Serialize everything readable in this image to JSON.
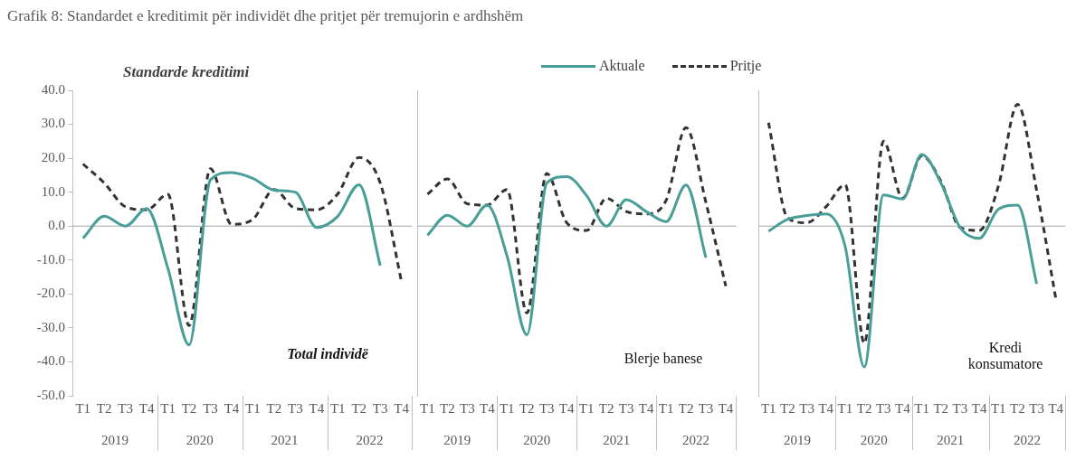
{
  "chart_data": [
    {
      "type": "line",
      "title": "Grafik 8: Standardet e kreditimit për individët dhe pritjet për tremujorin e ardhshëm",
      "subtitle": "Standarde kreditimi",
      "categories": [
        "T1",
        "T2",
        "T3",
        "T4",
        "T1",
        "T2",
        "T3",
        "T4",
        "T1",
        "T2",
        "T3",
        "T4",
        "T1",
        "T2",
        "T3",
        "T4"
      ],
      "series": [
        {
          "color": "#4a9e98",
          "line_style": "solid",
          "values": [
            -3.6,
            2.9,
            0,
            5.2,
            -12.5,
            -35,
            13.6,
            15.8,
            14.1,
            10.6,
            10,
            -0.4,
            2.9,
            12.2,
            -11.6,
            null
          ]
        },
        {
          "color": "#333333",
          "line_style": "dashed",
          "values": [
            18.3,
            12.7,
            5.7,
            4.8,
            9.4,
            -29.3,
            16.9,
            0.5,
            2,
            10.8,
            5.2,
            4.8,
            9.5,
            20.2,
            12.7,
            -16.3
          ]
        }
      ],
      "ylim": [
        -50,
        40
      ],
      "yticks": [
        {
          "value": -50,
          "label": "-50.0"
        },
        {
          "value": -40,
          "label": "-40.0"
        },
        {
          "value": -30,
          "label": "-30.0"
        },
        {
          "value": -20,
          "label": "-20.0"
        },
        {
          "value": -10,
          "label": "-10.0"
        },
        {
          "value": 0,
          "label": "0.0"
        },
        {
          "value": 10,
          "label": "10.0"
        },
        {
          "value": 20,
          "label": "20.0"
        },
        {
          "value": 30,
          "label": "30.0"
        },
        {
          "value": 40,
          "label": "40.0"
        }
      ],
      "ref_lines": [
        {
          "axis": "y",
          "value": 0,
          "color": "#a6a6a6"
        }
      ],
      "annotations": [
        "Total individë",
        "2019",
        "2020",
        "2021",
        "2022"
      ],
      "marker": "none",
      "grid": false,
      "legend": false
    },
    {
      "type": "line",
      "categories": [
        "T1",
        "T2",
        "T3",
        "T4",
        "T1",
        "T2",
        "T3",
        "T4",
        "T1",
        "T2",
        "T3",
        "T4",
        "T1",
        "T2",
        "T3",
        "T4"
      ],
      "series": [
        {
          "name": "Aktuale",
          "color": "#4a9e98",
          "line_style": "solid",
          "values": [
            -2.7,
            3.2,
            0,
            6.2,
            -8.8,
            -32,
            12.7,
            14.6,
            9,
            0,
            7.8,
            4.3,
            1.3,
            12.1,
            -9.3,
            null
          ]
        },
        {
          "name": "Pritje",
          "color": "#333333",
          "line_style": "dashed",
          "values": [
            9.4,
            13.9,
            6.6,
            6.2,
            10.8,
            -25.6,
            15.5,
            1,
            -1.3,
            8.2,
            4.3,
            3.6,
            7.6,
            29,
            7,
            -17.7
          ]
        }
      ],
      "ylim": [
        -50,
        40
      ],
      "tick_labels": "x",
      "ref_lines": [
        {
          "axis": "y",
          "value": 0,
          "color": "#a6a6a6"
        }
      ],
      "annotations": [
        "Blerje banese",
        "2019",
        "2020",
        "2021",
        "2022"
      ],
      "marker": "none",
      "grid": false,
      "legend": "top"
    },
    {
      "type": "line",
      "categories": [
        "T1",
        "T2",
        "T3",
        "T4",
        "T1",
        "T2",
        "T3",
        "T4",
        "T1",
        "T2",
        "T3",
        "T4",
        "T1",
        "T2",
        "T3",
        "T4"
      ],
      "series": [
        {
          "color": "#4a9e98",
          "line_style": "solid",
          "values": [
            -1.5,
            2,
            3.1,
            3.6,
            -6,
            -41.5,
            9.2,
            8,
            21.1,
            12.7,
            -0.4,
            -3.6,
            5,
            6.2,
            -17,
            null
          ]
        },
        {
          "color": "#333333",
          "line_style": "dashed",
          "values": [
            30.5,
            2.4,
            1,
            5.7,
            12.2,
            -34.5,
            25,
            8.2,
            20.7,
            13.2,
            -0.4,
            -1.3,
            11.8,
            35.9,
            10.4,
            -21.4
          ]
        }
      ],
      "ylim": [
        -50,
        40
      ],
      "tick_labels": "x",
      "ref_lines": [
        {
          "axis": "y",
          "value": 0,
          "color": "#a6a6a6"
        }
      ],
      "annotations": [
        "Kredi konsumatore",
        "2019",
        "2020",
        "2021",
        "2022"
      ],
      "marker": "none",
      "grid": false,
      "legend": false
    }
  ]
}
